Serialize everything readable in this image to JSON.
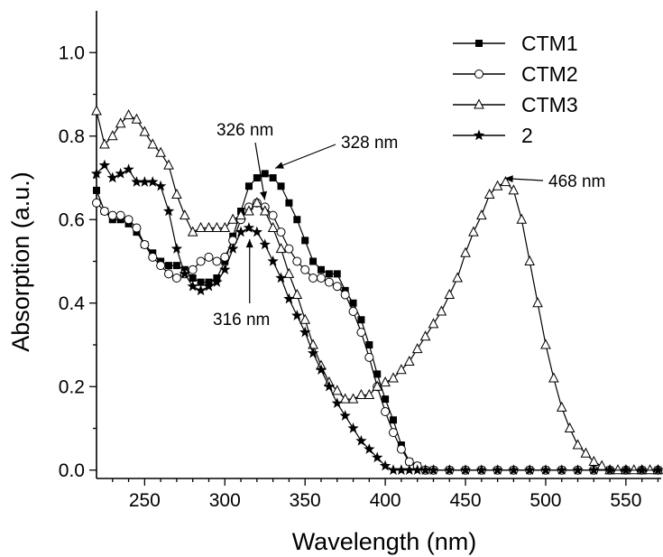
{
  "chart_data": {
    "type": "line",
    "xlabel": "Wavelength (nm)",
    "ylabel": "Absorption (a.u.)",
    "xlim": [
      220,
      572
    ],
    "ylim": [
      -0.02,
      1.1
    ],
    "xticks": [
      250,
      300,
      350,
      400,
      450,
      500,
      550
    ],
    "xtick_labels": [
      "250",
      "300",
      "350",
      "400",
      "450",
      "500",
      "550"
    ],
    "yticks": [
      0.0,
      0.2,
      0.4,
      0.6,
      0.8,
      1.0
    ],
    "ytick_labels": [
      "0.0",
      "0.2",
      "0.4",
      "0.6",
      "0.8",
      "1.0"
    ],
    "grid": false,
    "legend_position": "top-right",
    "series": [
      {
        "name": "CTM1",
        "marker": "filled-square",
        "x": [
          220,
          225,
          230,
          235,
          240,
          245,
          250,
          255,
          260,
          265,
          270,
          275,
          280,
          285,
          290,
          295,
          300,
          305,
          310,
          315,
          320,
          325,
          330,
          335,
          340,
          345,
          350,
          355,
          360,
          365,
          370,
          375,
          380,
          385,
          390,
          395,
          400,
          405,
          410,
          415,
          420,
          425,
          430,
          440,
          450,
          460,
          470,
          480,
          490,
          500,
          510,
          520,
          530,
          540,
          550,
          560,
          570
        ],
        "y": [
          0.67,
          0.62,
          0.6,
          0.6,
          0.59,
          0.57,
          0.54,
          0.52,
          0.5,
          0.49,
          0.49,
          0.48,
          0.46,
          0.45,
          0.45,
          0.46,
          0.5,
          0.56,
          0.62,
          0.68,
          0.7,
          0.71,
          0.7,
          0.68,
          0.64,
          0.6,
          0.55,
          0.5,
          0.48,
          0.47,
          0.47,
          0.43,
          0.4,
          0.36,
          0.3,
          0.23,
          0.17,
          0.12,
          0.06,
          0.02,
          0.01,
          0.0,
          0.0,
          0.0,
          0.0,
          0.0,
          0.0,
          0.0,
          0.0,
          0.0,
          0.0,
          0.0,
          0.0,
          0.0,
          0.0,
          0.0,
          0.0
        ]
      },
      {
        "name": "CTM2",
        "marker": "open-circle",
        "x": [
          220,
          225,
          230,
          235,
          240,
          245,
          250,
          255,
          260,
          265,
          270,
          275,
          280,
          285,
          290,
          295,
          300,
          305,
          310,
          315,
          320,
          325,
          330,
          335,
          340,
          345,
          350,
          355,
          360,
          365,
          370,
          375,
          380,
          385,
          390,
          395,
          400,
          405,
          410,
          415,
          420,
          425,
          430,
          440,
          450,
          460,
          470,
          480,
          490,
          500,
          510,
          520,
          530,
          540,
          550,
          560,
          570
        ],
        "y": [
          0.64,
          0.62,
          0.61,
          0.61,
          0.6,
          0.58,
          0.54,
          0.51,
          0.49,
          0.47,
          0.46,
          0.47,
          0.48,
          0.5,
          0.51,
          0.5,
          0.51,
          0.55,
          0.6,
          0.63,
          0.64,
          0.63,
          0.61,
          0.57,
          0.53,
          0.5,
          0.48,
          0.46,
          0.46,
          0.45,
          0.44,
          0.42,
          0.38,
          0.33,
          0.27,
          0.2,
          0.14,
          0.09,
          0.05,
          0.02,
          0.01,
          0.0,
          0.0,
          0.0,
          0.0,
          0.0,
          0.0,
          0.0,
          0.0,
          0.0,
          0.0,
          0.0,
          0.0,
          0.0,
          0.0,
          0.0,
          0.0
        ]
      },
      {
        "name": "CTM3",
        "marker": "open-triangle",
        "x": [
          220,
          225,
          230,
          235,
          240,
          245,
          250,
          255,
          260,
          265,
          270,
          275,
          280,
          285,
          290,
          295,
          300,
          305,
          310,
          315,
          320,
          325,
          330,
          335,
          340,
          345,
          350,
          355,
          360,
          365,
          370,
          375,
          380,
          385,
          390,
          395,
          400,
          405,
          410,
          415,
          420,
          425,
          430,
          435,
          440,
          445,
          450,
          455,
          460,
          465,
          470,
          475,
          480,
          485,
          490,
          495,
          500,
          505,
          510,
          515,
          520,
          525,
          530,
          535,
          540,
          545,
          550,
          555,
          560,
          565,
          570
        ],
        "y": [
          0.86,
          0.78,
          0.8,
          0.83,
          0.85,
          0.84,
          0.81,
          0.78,
          0.76,
          0.73,
          0.66,
          0.61,
          0.57,
          0.58,
          0.58,
          0.58,
          0.58,
          0.6,
          0.61,
          0.62,
          0.64,
          0.62,
          0.58,
          0.53,
          0.47,
          0.42,
          0.36,
          0.3,
          0.25,
          0.21,
          0.19,
          0.17,
          0.17,
          0.18,
          0.18,
          0.2,
          0.21,
          0.22,
          0.24,
          0.26,
          0.29,
          0.32,
          0.35,
          0.38,
          0.42,
          0.46,
          0.52,
          0.57,
          0.61,
          0.66,
          0.68,
          0.69,
          0.67,
          0.6,
          0.5,
          0.4,
          0.3,
          0.22,
          0.15,
          0.1,
          0.06,
          0.04,
          0.02,
          0.01,
          0.0,
          0.0,
          0.0,
          0.0,
          0.0,
          0.0,
          0.0
        ]
      },
      {
        "name": "2",
        "marker": "filled-star",
        "x": [
          220,
          225,
          230,
          235,
          240,
          245,
          250,
          255,
          260,
          265,
          270,
          275,
          280,
          285,
          290,
          295,
          300,
          305,
          310,
          315,
          320,
          325,
          330,
          335,
          340,
          345,
          350,
          355,
          360,
          365,
          370,
          375,
          380,
          385,
          390,
          395,
          400,
          405,
          410,
          415,
          420,
          425,
          430,
          440,
          450,
          460,
          470,
          480,
          490,
          500,
          510,
          520,
          530,
          540,
          550,
          560,
          570
        ],
        "y": [
          0.71,
          0.73,
          0.7,
          0.71,
          0.72,
          0.69,
          0.69,
          0.69,
          0.68,
          0.62,
          0.53,
          0.47,
          0.44,
          0.43,
          0.44,
          0.45,
          0.48,
          0.53,
          0.57,
          0.58,
          0.57,
          0.54,
          0.5,
          0.46,
          0.41,
          0.37,
          0.33,
          0.28,
          0.24,
          0.2,
          0.16,
          0.13,
          0.1,
          0.07,
          0.05,
          0.03,
          0.01,
          0.0,
          0.0,
          0.0,
          0.0,
          0.0,
          0.0,
          0.0,
          0.0,
          0.0,
          0.0,
          0.0,
          0.0,
          0.0,
          0.0,
          0.0,
          0.0,
          0.0,
          0.0,
          0.0,
          0.0
        ]
      }
    ],
    "annotations": [
      {
        "text": "326 nm",
        "x": 326,
        "y": 0.63
      },
      {
        "text": "328 nm",
        "x": 328,
        "y": 0.71
      },
      {
        "text": "468 nm",
        "x": 470,
        "y": 0.69
      },
      {
        "text": "316 nm",
        "x": 316,
        "y": 0.57
      }
    ]
  }
}
